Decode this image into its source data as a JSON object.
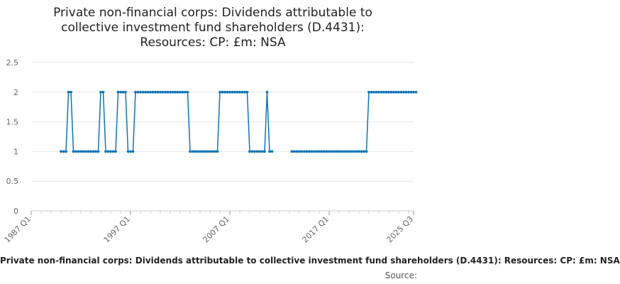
{
  "chart_data": {
    "type": "line",
    "title": "Private non-financial corps: Dividends attributable to collective investment fund shareholders (D.4431): Resources: CP: £m: NSA",
    "xlabel": "",
    "ylabel": "",
    "ylim": [
      0,
      2.5
    ],
    "yticks": [
      "0",
      "0.5",
      "1",
      "1.5",
      "2",
      "2.5"
    ],
    "xticks": [
      "1987 Q1",
      "1997 Q1",
      "2007 Q1",
      "2017 Q1",
      "2025 Q3"
    ],
    "xrange": [
      "1987 Q1",
      "2025 Q3"
    ],
    "grid": "horizontal",
    "series": [
      {
        "name": "Private non-financial corps: Dividends attributable to collective investment fund shareholders (D.4431): Resources: CP: £m: NSA",
        "color": "#0f75b5",
        "segments": [
          {
            "start": "1990 Q1",
            "values": [
              1,
              1,
              1,
              2,
              2,
              1,
              1,
              1,
              1,
              1,
              1,
              1,
              1,
              1,
              1,
              1,
              2,
              2,
              1,
              1,
              1,
              1,
              1,
              2,
              2,
              2,
              2,
              1,
              1,
              1,
              2,
              2,
              2,
              2,
              2,
              2,
              2,
              2,
              2,
              2,
              2,
              2,
              2,
              2,
              2,
              2,
              2,
              2,
              2,
              2,
              2,
              2,
              1,
              1,
              1,
              1,
              1,
              1,
              1,
              1,
              1,
              1,
              1,
              1,
              2,
              2,
              2,
              2,
              2,
              2,
              2,
              2,
              2,
              2,
              2,
              2,
              1,
              1
            ]
          },
          {
            "start": "2009 Q3",
            "values": [
              1,
              1,
              1,
              1,
              1,
              2,
              1,
              1
            ]
          },
          {
            "start": "2013 Q2",
            "values": [
              1,
              1,
              1,
              1,
              1,
              1,
              1,
              1,
              1,
              1,
              1,
              1,
              1,
              1,
              1,
              1,
              1,
              1,
              1,
              1,
              1,
              1,
              1,
              1,
              1,
              1,
              1,
              1,
              1,
              1,
              1,
              2,
              2,
              2,
              2,
              2,
              2,
              2,
              2,
              2,
              2,
              2,
              2,
              2,
              2,
              2,
              2,
              2,
              2,
              2,
              2
            ]
          }
        ]
      }
    ]
  },
  "footer": {
    "series_label": "Private non-financial corps: Dividends attributable to collective investment fund shareholders (D.4431): Resources: CP: £m: NSA",
    "source_label": "Source:"
  },
  "colors": {
    "line": "#0f75b5",
    "grid": "#e6e6e6",
    "axis_text": "#666666"
  }
}
